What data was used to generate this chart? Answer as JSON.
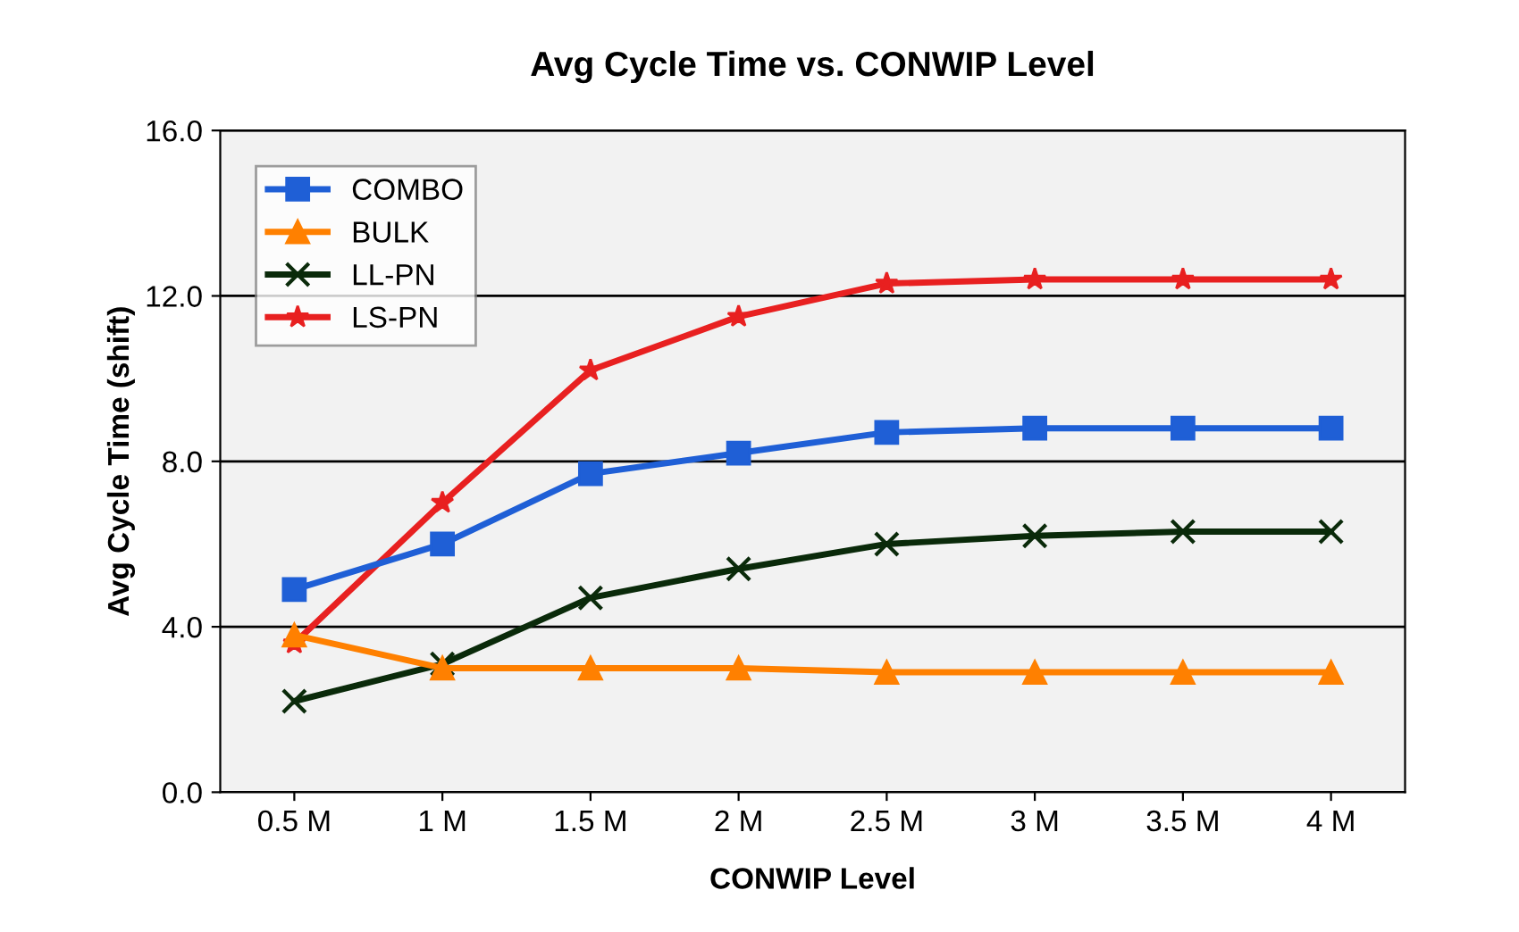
{
  "chart_data": {
    "type": "line",
    "title": "Avg Cycle Time vs. CONWIP Level",
    "xlabel": "CONWIP Level",
    "ylabel": "Avg Cycle Time (shift)",
    "categories": [
      "0.5 M",
      "1 M",
      "1.5 M",
      "2 M",
      "2.5 M",
      "3 M",
      "3.5 M",
      "4 M"
    ],
    "series": [
      {
        "name": "COMBO",
        "color": "#1f5fd6",
        "marker": "square",
        "values": [
          4.9,
          6.0,
          7.7,
          8.2,
          8.7,
          8.8,
          8.8,
          8.8
        ]
      },
      {
        "name": "BULK",
        "color": "#ff8000",
        "marker": "triangle",
        "values": [
          3.8,
          3.0,
          3.0,
          3.0,
          2.9,
          2.9,
          2.9,
          2.9
        ]
      },
      {
        "name": "LL-PN",
        "color": "#0a2a0a",
        "marker": "cross",
        "values": [
          2.2,
          3.1,
          4.7,
          5.4,
          6.0,
          6.2,
          6.3,
          6.3
        ]
      },
      {
        "name": "LS-PN",
        "color": "#e82020",
        "marker": "star",
        "values": [
          3.6,
          7.0,
          10.2,
          11.5,
          12.3,
          12.4,
          12.4,
          12.4
        ]
      }
    ],
    "ylim": [
      0,
      16
    ],
    "yticks": [
      {
        "value": 0,
        "label": "0.0"
      },
      {
        "value": 4,
        "label": "4.0"
      },
      {
        "value": 8,
        "label": "8.0"
      },
      {
        "value": 12,
        "label": "12.0"
      },
      {
        "value": 16,
        "label": "16.0"
      }
    ],
    "grid": "y",
    "legend": "top left",
    "line_style": "solid"
  }
}
